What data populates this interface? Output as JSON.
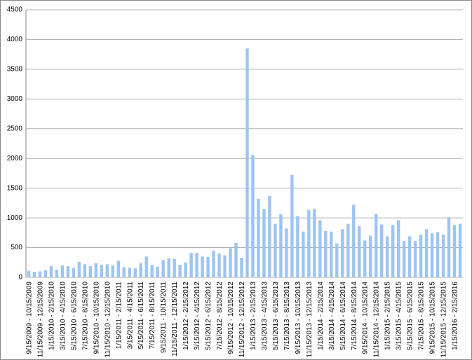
{
  "chart_data": {
    "type": "bar",
    "categories": [
      "9/15/2009 - 10/15/2009",
      null,
      "11/15/2009 - 12/15/2009",
      null,
      "1/15/2010 - 2/15/2010",
      null,
      "3/15/2010 - 4/15/2010",
      null,
      "5/15/2010 - 6/15/2010",
      null,
      "7/15/2010 - 8/15/2010",
      null,
      "9/15/2010 - 10/15/2010",
      null,
      "11/15/2010 - 12/15/2010",
      null,
      "1/15/2011 - 2/15/2011",
      null,
      "3/15/2011 - 4/15/2011",
      null,
      "5/15/2011 - 6/15/2011",
      null,
      "7/15/2011 - 8/15/2011",
      null,
      "9/15/2011 - 10/15/2011",
      null,
      "11/15/2011 - 12/15/2011",
      null,
      "1/15/2012 - 2/15/2012",
      null,
      "3/15/2012 - 4/15/2012",
      null,
      "5/15/2012 - 6/15/2012",
      null,
      "7/15/2012 - 8/15/2012",
      null,
      "9/15/2012 - 10/15/2012",
      null,
      "11/15/2012 - 12/15/2012",
      null,
      "1/15/2013 - 2/15/2013",
      null,
      "3/15/2013 - 4/15/2013",
      null,
      "5/15/2013 - 6/15/2013",
      null,
      "7/15/2013 - 8/15/2013",
      null,
      "9/15/2013 - 10/15/2013",
      null,
      "11/15/2013 - 12/15/2013",
      null,
      "1/15/2014 - 2/15/2014",
      null,
      "3/15/2014 - 4/15/2014",
      null,
      "5/15/2014 - 6/15/2014",
      null,
      "7/15/2014 - 8/15/2014",
      null,
      "9/15/2014 - 10/15/2014",
      null,
      "11/15/2014 - 12/15/2014",
      null,
      "1/15/2015 - 2/15/2015",
      null,
      "3/15/2015 - 4/15/2015",
      null,
      "5/15/2015 - 6/15/2015",
      null,
      "7/15/2015 - 8/15/2015",
      null,
      "9/15/2015 - 10/15/2015",
      null,
      "11/15/2015 - 12/15/2015",
      null,
      "1/15/2016 - 2/15/2016",
      null
    ],
    "values": [
      110,
      90,
      100,
      120,
      190,
      130,
      200,
      190,
      160,
      260,
      220,
      190,
      240,
      210,
      220,
      200,
      280,
      170,
      160,
      150,
      240,
      350,
      210,
      180,
      290,
      320,
      310,
      210,
      250,
      410,
      410,
      350,
      340,
      450,
      400,
      370,
      490,
      580,
      330,
      3850,
      2060,
      1320,
      1150,
      1370,
      900,
      1060,
      820,
      1720,
      1030,
      770,
      1130,
      1150,
      960,
      780,
      770,
      570,
      810,
      900,
      1220,
      860,
      620,
      700,
      1070,
      890,
      690,
      880,
      960,
      610,
      690,
      610,
      720,
      810,
      740,
      760,
      720,
      1010,
      880,
      900
    ],
    "color": "#9ec4f0",
    "ylim": [
      0,
      4500
    ],
    "yticks": [
      0,
      500,
      1000,
      1500,
      2000,
      2500,
      3000,
      3500,
      4000,
      4500
    ],
    "grid": true
  }
}
